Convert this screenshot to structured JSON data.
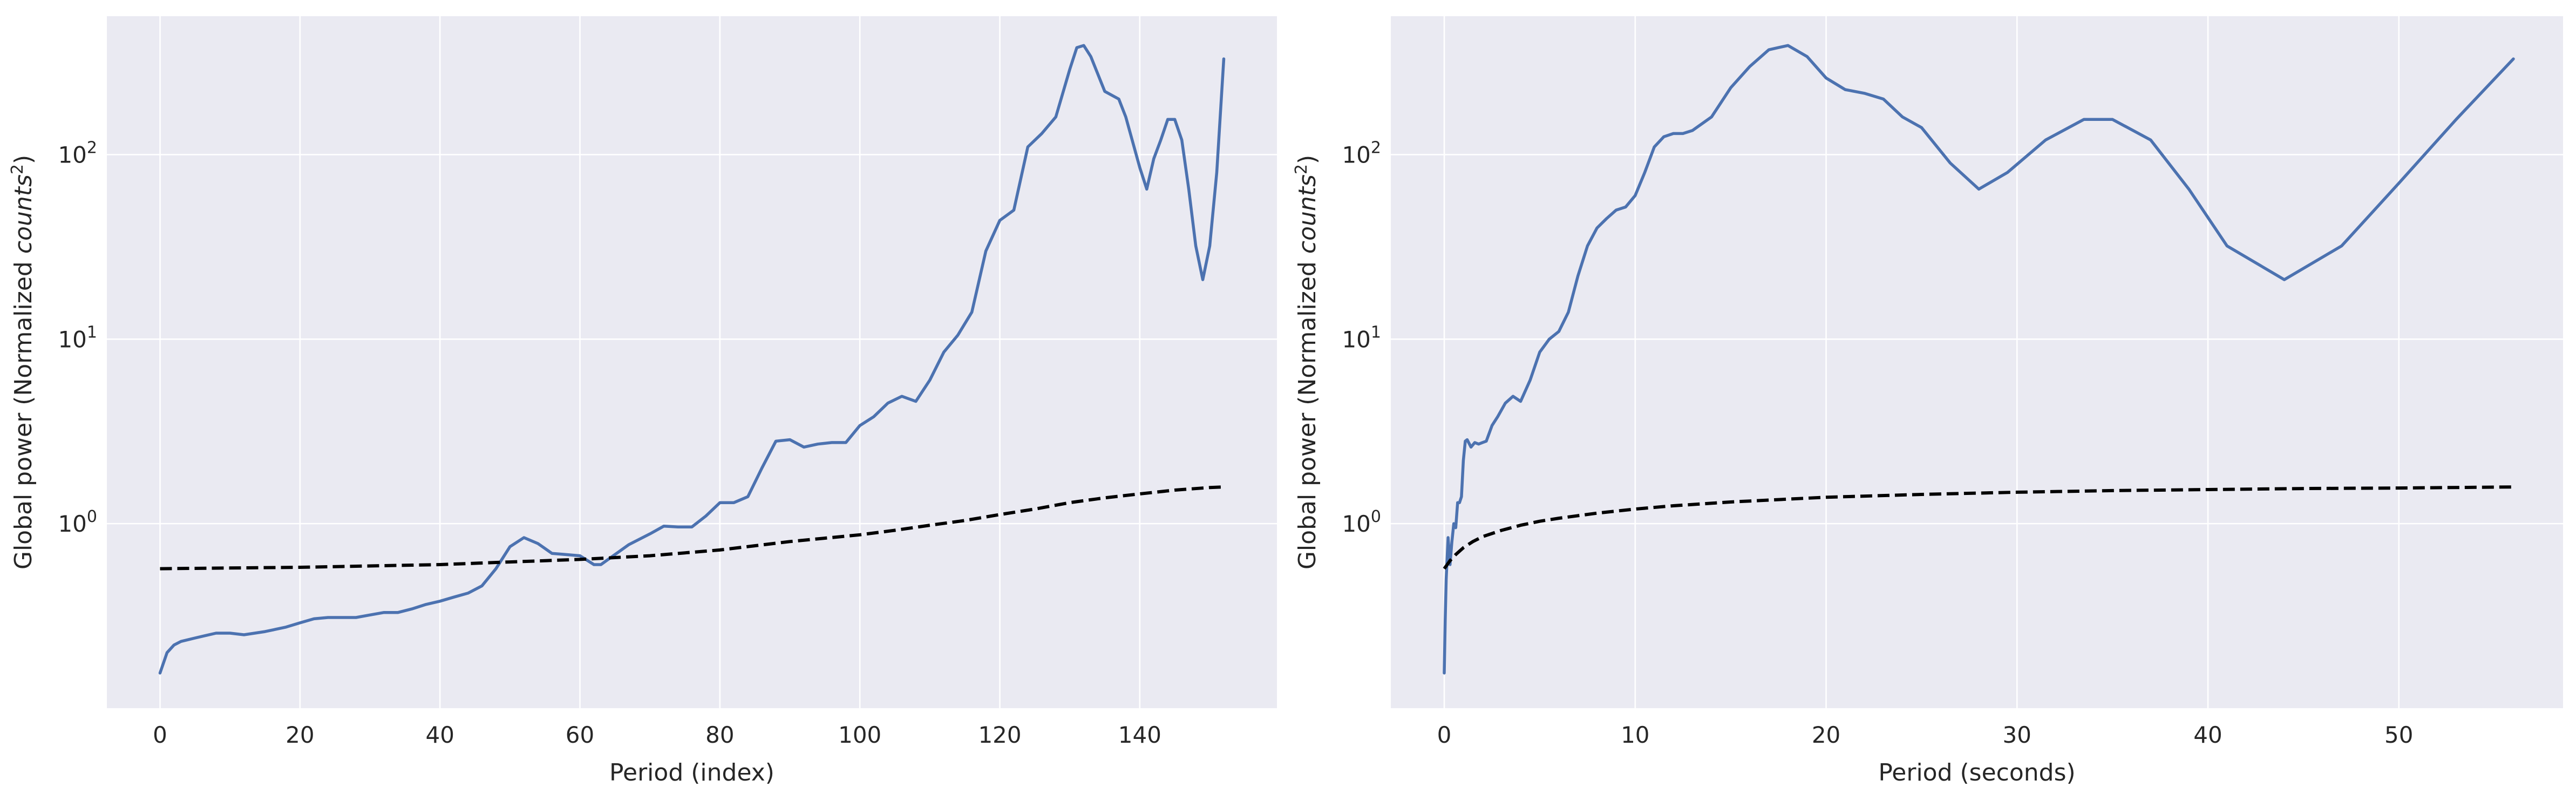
{
  "figure": {
    "background": "#ffffff",
    "plot_background": "#eaeaf2",
    "grid_color": "#ffffff",
    "text_color": "#262626"
  },
  "chart_data": [
    {
      "type": "line",
      "xlabel": "Period (index)",
      "ylabel_prefix": "Global power (Normalized ",
      "ylabel_italic": "counts",
      "ylabel_sup": "2",
      "ylabel_suffix": ")",
      "xlim": [
        -7.6,
        159.6
      ],
      "ylim_log10": [
        -1.0,
        2.75
      ],
      "y_scale": "log",
      "grid": true,
      "xticks": [
        0,
        20,
        40,
        60,
        80,
        100,
        120,
        140
      ],
      "xtick_labels": [
        "0",
        "20",
        "40",
        "60",
        "80",
        "100",
        "120",
        "140"
      ],
      "yticks_exponent": [
        0,
        1,
        2
      ],
      "ytick_label_base": "10",
      "series": [
        {
          "style": "solid",
          "color": "#4c72b0",
          "x": [
            0,
            1,
            2,
            3,
            5,
            8,
            10,
            12,
            15,
            18,
            20,
            22,
            24,
            26,
            28,
            30,
            32,
            34,
            36,
            38,
            40,
            42,
            44,
            46,
            48,
            50,
            52,
            54,
            56,
            58,
            60,
            62,
            63,
            65,
            67,
            70,
            72,
            74,
            76,
            78,
            80,
            82,
            84,
            86,
            88,
            90,
            92,
            94,
            96,
            98,
            100,
            102,
            104,
            106,
            108,
            110,
            112,
            114,
            116,
            118,
            120,
            122,
            124,
            126,
            128,
            130,
            131,
            132,
            133,
            135,
            137,
            138,
            140,
            141,
            142,
            143,
            144,
            145,
            146,
            147,
            148,
            149,
            150,
            151,
            152
          ],
          "y": [
            0.155,
            0.2,
            0.22,
            0.23,
            0.24,
            0.255,
            0.255,
            0.25,
            0.26,
            0.275,
            0.29,
            0.305,
            0.31,
            0.31,
            0.31,
            0.32,
            0.33,
            0.33,
            0.345,
            0.365,
            0.38,
            0.4,
            0.42,
            0.46,
            0.57,
            0.75,
            0.84,
            0.78,
            0.69,
            0.68,
            0.67,
            0.6,
            0.6,
            0.68,
            0.77,
            0.88,
            0.97,
            0.96,
            0.96,
            1.1,
            1.3,
            1.3,
            1.4,
            2.0,
            2.8,
            2.85,
            2.6,
            2.7,
            2.75,
            2.75,
            3.4,
            3.8,
            4.5,
            4.9,
            4.6,
            6.0,
            8.5,
            10.5,
            14,
            30,
            44,
            50,
            110,
            130,
            160,
            290,
            380,
            390,
            340,
            220,
            200,
            160,
            85,
            65,
            95,
            120,
            155,
            155,
            120,
            65,
            32,
            21,
            32,
            80,
            330
          ]
        },
        {
          "style": "dashed",
          "color": "#000000",
          "x": [
            0,
            10,
            20,
            30,
            40,
            50,
            60,
            70,
            80,
            90,
            100,
            105,
            110,
            115,
            120,
            125,
            130,
            135,
            140,
            145,
            150,
            152
          ],
          "y": [
            0.57,
            0.575,
            0.58,
            0.59,
            0.6,
            0.62,
            0.64,
            0.67,
            0.72,
            0.8,
            0.87,
            0.92,
            0.98,
            1.04,
            1.12,
            1.2,
            1.3,
            1.38,
            1.45,
            1.52,
            1.57,
            1.58
          ]
        }
      ]
    },
    {
      "type": "line",
      "xlabel": "Period (seconds)",
      "ylabel_prefix": "Global power (Normalized ",
      "ylabel_italic": "counts",
      "ylabel_sup": "2",
      "ylabel_suffix": ")",
      "xlim": [
        -2.8,
        58.6
      ],
      "ylim_log10": [
        -1.0,
        2.75
      ],
      "y_scale": "log",
      "grid": true,
      "xticks": [
        0,
        10,
        20,
        30,
        40,
        50
      ],
      "xtick_labels": [
        "0",
        "10",
        "20",
        "30",
        "40",
        "50"
      ],
      "yticks_exponent": [
        0,
        1,
        2
      ],
      "ytick_label_base": "10",
      "series": [
        {
          "style": "solid",
          "color": "#4c72b0",
          "x": [
            0.0,
            0.05,
            0.1,
            0.2,
            0.3,
            0.4,
            0.5,
            0.6,
            0.7,
            0.8,
            0.9,
            1.0,
            1.1,
            1.2,
            1.4,
            1.6,
            1.8,
            2.0,
            2.2,
            2.5,
            2.8,
            3.2,
            3.6,
            4.0,
            4.5,
            5.0,
            5.5,
            6.0,
            6.5,
            7.0,
            7.5,
            8.0,
            8.5,
            9.0,
            9.5,
            10.0,
            10.5,
            11.0,
            11.5,
            12.0,
            12.5,
            13.0,
            14.0,
            15.0,
            16.0,
            17.0,
            17.5,
            18.0,
            19.0,
            20.0,
            21.0,
            22.0,
            23.0,
            24.0,
            25.0,
            26.5,
            28.0,
            29.5,
            31.5,
            33.5,
            35.0,
            37.0,
            39.0,
            41.0,
            44.0,
            47.0,
            50.0,
            53.0,
            56.0
          ],
          "y": [
            0.155,
            0.3,
            0.5,
            0.84,
            0.6,
            0.8,
            1.0,
            0.95,
            1.3,
            1.3,
            1.4,
            2.2,
            2.8,
            2.85,
            2.6,
            2.75,
            2.7,
            2.75,
            2.8,
            3.4,
            3.8,
            4.5,
            4.9,
            4.6,
            6.0,
            8.5,
            10.0,
            11.0,
            14.0,
            22.0,
            32.0,
            40.0,
            45.0,
            50.0,
            52.0,
            60.0,
            80.0,
            110.0,
            125.0,
            130.0,
            130.0,
            135.0,
            160.0,
            230.0,
            300.0,
            370.0,
            380.0,
            390.0,
            340.0,
            260.0,
            225.0,
            215.0,
            200.0,
            160.0,
            140.0,
            90.0,
            65.0,
            80.0,
            120.0,
            155.0,
            155.0,
            120.0,
            65.0,
            32.0,
            21.0,
            32.0,
            70.0,
            155.0,
            330.0
          ]
        },
        {
          "style": "dashed",
          "color": "#000000",
          "x": [
            0.0,
            0.3,
            0.6,
            1.0,
            1.5,
            2.0,
            3.0,
            4.0,
            5.0,
            6.0,
            8.0,
            10.0,
            12.0,
            15.0,
            20.0,
            25.0,
            30.0,
            35.0,
            40.0,
            45.0,
            50.0,
            56.0
          ],
          "y": [
            0.57,
            0.63,
            0.68,
            0.74,
            0.8,
            0.85,
            0.92,
            0.98,
            1.03,
            1.07,
            1.14,
            1.2,
            1.25,
            1.31,
            1.39,
            1.44,
            1.48,
            1.51,
            1.53,
            1.55,
            1.56,
            1.58
          ]
        }
      ]
    }
  ]
}
